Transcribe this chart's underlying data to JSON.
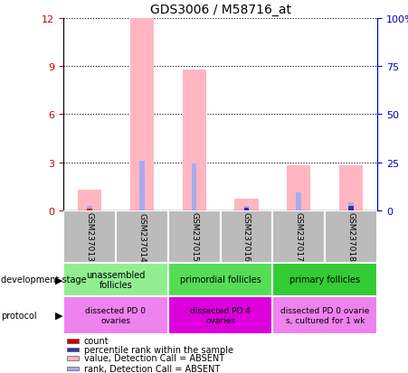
{
  "title": "GDS3006 / M58716_at",
  "samples": [
    "GSM237013",
    "GSM237014",
    "GSM237015",
    "GSM237016",
    "GSM237017",
    "GSM237018"
  ],
  "pink_bars": [
    1.3,
    12.0,
    8.8,
    0.7,
    2.8,
    2.8
  ],
  "blue_bars": [
    0.3,
    3.1,
    2.9,
    0.25,
    1.1,
    0.5
  ],
  "red_bars": [
    0.12,
    0.0,
    0.0,
    0.0,
    0.0,
    0.0
  ],
  "dark_blue_bars": [
    0.0,
    0.0,
    0.0,
    0.18,
    0.0,
    0.25
  ],
  "ylim_left": [
    0,
    12
  ],
  "ylim_right": [
    0,
    100
  ],
  "yticks_left": [
    0,
    3,
    6,
    9,
    12
  ],
  "yticks_right": [
    0,
    25,
    50,
    75,
    100
  ],
  "ytick_labels_left": [
    "0",
    "3",
    "6",
    "9",
    "12"
  ],
  "ytick_labels_right": [
    "0",
    "25",
    "50",
    "75",
    "100%"
  ],
  "dev_stage_groups": [
    {
      "label": "unassembled\nfollicles",
      "start": 0,
      "end": 2,
      "color": "#90EE90"
    },
    {
      "label": "primordial follicles",
      "start": 2,
      "end": 4,
      "color": "#55DD55"
    },
    {
      "label": "primary follicles",
      "start": 4,
      "end": 6,
      "color": "#33CC33"
    }
  ],
  "protocol_groups": [
    {
      "label": "dissected PD 0\novaries",
      "start": 0,
      "end": 2,
      "color": "#EE82EE"
    },
    {
      "label": "dissected PD 4\novaries",
      "start": 2,
      "end": 4,
      "color": "#DD00DD"
    },
    {
      "label": "dissected PD 0 ovarie\ns, cultured for 1 wk",
      "start": 4,
      "end": 6,
      "color": "#EE82EE"
    }
  ],
  "bg_color": "#FFFFFF",
  "pink_color": "#FFB6C1",
  "blue_color": "#AAAAEE",
  "red_color": "#CC0000",
  "dark_blue_color": "#3333AA",
  "grid_color": "#000000",
  "left_tick_color": "#CC0000",
  "right_tick_color": "#0000CC",
  "sample_bg_color": "#BBBBBB",
  "pink_bar_width": 0.45,
  "blue_bar_width": 0.1,
  "legend_items": [
    {
      "color": "#CC0000",
      "label": "count"
    },
    {
      "color": "#3333AA",
      "label": "percentile rank within the sample"
    },
    {
      "color": "#FFB6C1",
      "label": "value, Detection Call = ABSENT"
    },
    {
      "color": "#AAAAEE",
      "label": "rank, Detection Call = ABSENT"
    }
  ]
}
